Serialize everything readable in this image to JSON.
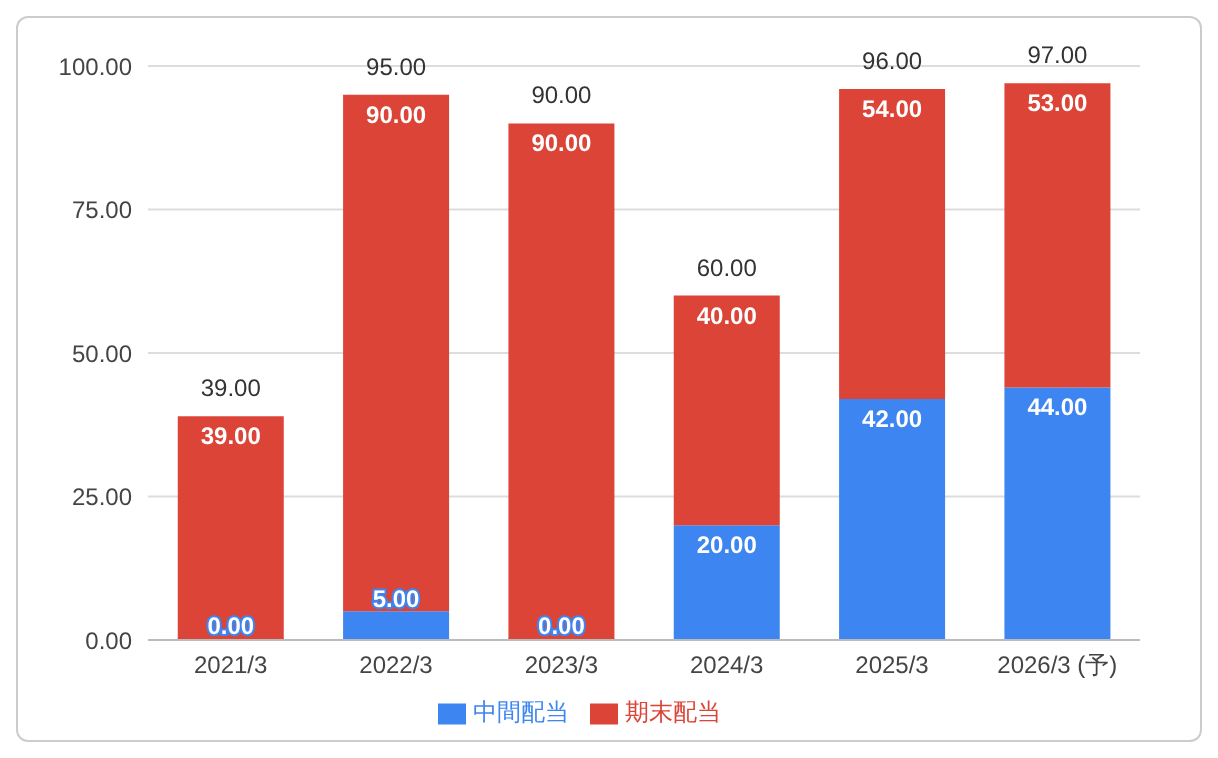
{
  "chart_data": {
    "type": "bar",
    "stacked": true,
    "categories": [
      "2021/3",
      "2022/3",
      "2023/3",
      "2024/3",
      "2025/3",
      "2026/3 (予)"
    ],
    "series": [
      {
        "name": "中間配当",
        "color": "#3d85f0",
        "values": [
          0,
          5,
          0,
          20,
          42,
          44
        ],
        "value_labels": [
          "0.00",
          "5.00",
          "0.00",
          "20.00",
          "42.00",
          "44.00"
        ]
      },
      {
        "name": "期末配当",
        "color": "#db4437",
        "values": [
          39,
          90,
          90,
          40,
          54,
          53
        ],
        "value_labels": [
          "39.00",
          "90.00",
          "90.00",
          "40.00",
          "54.00",
          "53.00"
        ]
      }
    ],
    "totals": [
      "39.00",
      "95.00",
      "90.00",
      "60.00",
      "96.00",
      "97.00"
    ],
    "ylim": [
      0,
      100
    ],
    "yticks": [
      {
        "value": 0,
        "label": "0.00"
      },
      {
        "value": 25,
        "label": "25.00"
      },
      {
        "value": 50,
        "label": "50.00"
      },
      {
        "value": 75,
        "label": "75.00"
      },
      {
        "value": 100,
        "label": "100.00"
      }
    ],
    "grid": "y",
    "legend": "bottom"
  }
}
